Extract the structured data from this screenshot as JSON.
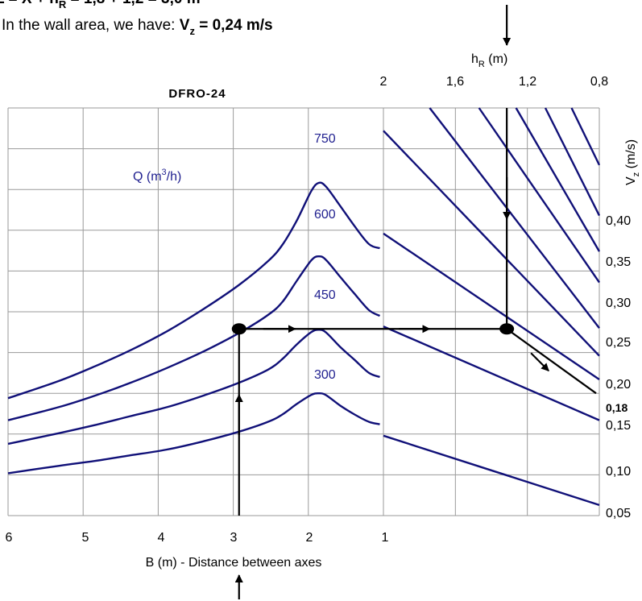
{
  "header": {
    "line1_prefix": "L = X + h",
    "line1_sub": "R",
    "line1_suffix": " = 1,8 + 1,2 = 3,0 m",
    "line2_prefix": "In the wall area, we have: ",
    "line2_var": "V",
    "line2_sub": "z",
    "line2_value": " = 0,24 m/s"
  },
  "chart_data": {
    "type": "line",
    "title": "DFRO-24",
    "left_panel": {
      "xlabel": "B (m) - Distance between axes",
      "x_ticks": [
        "6",
        "5",
        "4",
        "3",
        "2",
        "1"
      ],
      "x_range": [
        6.2,
        1.0
      ],
      "series_label": "Q (m³/h)",
      "series_label_base": "Q (m",
      "series_label_sup": "3",
      "series_label_tail": "/h)",
      "series": [
        {
          "name": "750",
          "x": [
            6.2,
            5.5,
            5,
            4.5,
            4,
            3.5,
            3,
            2.6,
            2.4,
            2.2,
            2.0,
            1.9,
            1.8,
            1.6,
            1.4,
            1.2,
            1.05
          ],
          "y": [
            0.174,
            0.195,
            0.213,
            0.233,
            0.256,
            0.283,
            0.313,
            0.342,
            0.362,
            0.392,
            0.428,
            0.438,
            0.434,
            0.41,
            0.385,
            0.363,
            0.358
          ]
        },
        {
          "name": "600",
          "x": [
            6.2,
            5.5,
            5,
            4.5,
            4,
            3.5,
            3,
            2.6,
            2.4,
            2.2,
            2.0,
            1.9,
            1.8,
            1.6,
            1.4,
            1.2,
            1.05
          ],
          "y": [
            0.147,
            0.163,
            0.177,
            0.193,
            0.211,
            0.231,
            0.254,
            0.276,
            0.292,
            0.318,
            0.343,
            0.348,
            0.344,
            0.323,
            0.302,
            0.282,
            0.275
          ]
        },
        {
          "name": "450",
          "x": [
            6.2,
            5.5,
            5,
            4.5,
            4,
            3.5,
            3,
            2.6,
            2.4,
            2.2,
            2.0,
            1.9,
            1.8,
            1.6,
            1.4,
            1.2,
            1.05
          ],
          "y": [
            0.118,
            0.131,
            0.141,
            0.152,
            0.163,
            0.177,
            0.193,
            0.209,
            0.222,
            0.24,
            0.255,
            0.258,
            0.255,
            0.237,
            0.221,
            0.205,
            0.2
          ]
        },
        {
          "name": "300",
          "x": [
            6.2,
            5.5,
            5,
            4.5,
            4,
            3.5,
            3,
            2.6,
            2.4,
            2.2,
            2.0,
            1.9,
            1.8,
            1.6,
            1.4,
            1.2,
            1.05
          ],
          "y": [
            0.082,
            0.091,
            0.097,
            0.104,
            0.111,
            0.121,
            0.133,
            0.145,
            0.154,
            0.167,
            0.178,
            0.18,
            0.178,
            0.165,
            0.154,
            0.145,
            0.142
          ]
        }
      ]
    },
    "right_panel": {
      "top_label_base": "h",
      "top_label_sub": "R",
      "top_label_tail": " (m)",
      "h_ticks": [
        "2",
        "1,6",
        "1,2",
        "0,8"
      ],
      "h_range": [
        2.0,
        0.6
      ],
      "ylabel_base": "V",
      "ylabel_sub": "z",
      "ylabel_tail": " (m/s)",
      "y_ticks": [
        "0,05",
        "0,10",
        "0,15",
        "0,20",
        "0,25",
        "0,30",
        "0,35",
        "0,40"
      ],
      "y_tick_bold": "0,18",
      "y_range": [
        0.03,
        0.53
      ],
      "lines": [
        {
          "x": [
            2.0,
            0.6
          ],
          "y": [
            0.128,
            0.043
          ]
        },
        {
          "x": [
            2.0,
            0.6
          ],
          "y": [
            0.262,
            0.147
          ]
        },
        {
          "x": [
            2.0,
            0.6
          ],
          "y": [
            0.376,
            0.197
          ]
        },
        {
          "x": [
            2.0,
            1.3
          ],
          "y": [
            0.502,
            0.364
          ]
        },
        {
          "x": [
            1.3,
            0.6
          ],
          "y": [
            0.364,
            0.226
          ]
        },
        {
          "x": [
            1.7,
            0.6
          ],
          "y": [
            0.53,
            0.26
          ]
        },
        {
          "x": [
            1.38,
            0.6
          ],
          "y": [
            0.53,
            0.316
          ]
        },
        {
          "x": [
            1.14,
            0.6
          ],
          "y": [
            0.53,
            0.354
          ]
        },
        {
          "x": [
            0.95,
            0.6
          ],
          "y": [
            0.53,
            0.398
          ]
        },
        {
          "x": [
            0.78,
            0.6
          ],
          "y": [
            0.53,
            0.46
          ]
        }
      ]
    },
    "reading_path": {
      "B": 3,
      "hR": 1.2,
      "Vz_intersection": 0.259,
      "Vz_result": 0.18
    }
  },
  "colors": {
    "curve": "#101078",
    "grid": "#9a9a9a",
    "label": "#1f1f8f",
    "text": "#000000"
  }
}
